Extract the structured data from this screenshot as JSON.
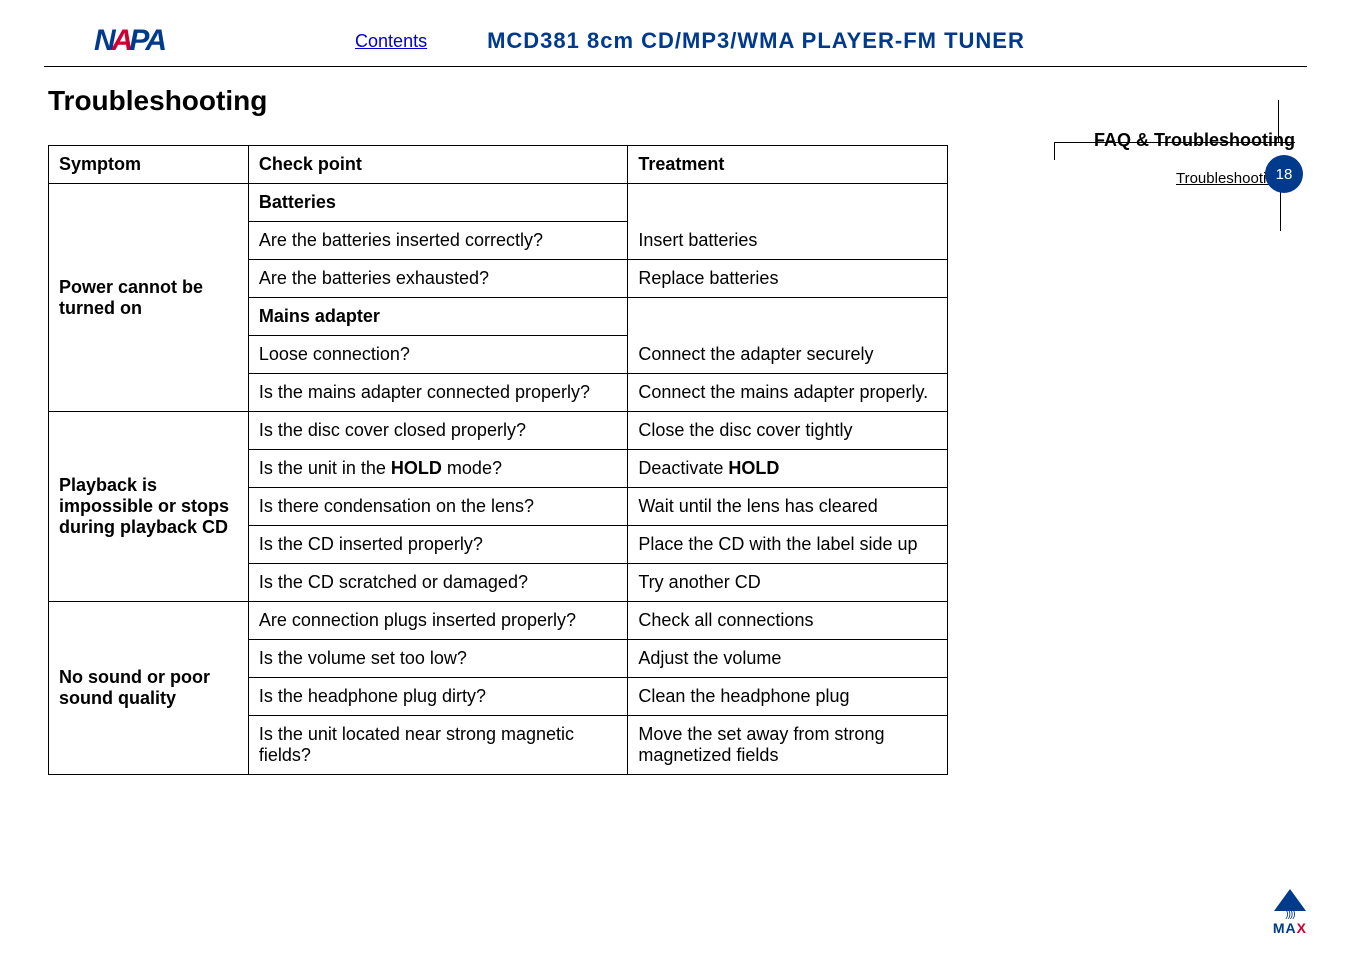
{
  "header": {
    "logo_parts": {
      "n": "N",
      "a": "A",
      "p": "P",
      "a2": "A"
    },
    "contents_link": "Contents",
    "product_title": "MCD381 8cm CD/MP3/WMA PLAYER-FM TUNER"
  },
  "page_title": "Troubleshooting",
  "sidebar": {
    "faq_heading": "FAQ & Troubleshooting",
    "toc_item": "Troubleshooting",
    "page_number": "18"
  },
  "table": {
    "headers": {
      "symptom": "Symptom",
      "check": "Check point",
      "treatment": "Treatment"
    },
    "groups": [
      {
        "symptom": "Power cannot be turned on",
        "rows": [
          {
            "check": "Batteries",
            "treatment": "",
            "is_subheader": true
          },
          {
            "check": "Are the batteries inserted correctly?",
            "treatment": "Insert batteries",
            "justify_check": true
          },
          {
            "check": "Are the batteries exhausted?",
            "treatment": "Replace batteries"
          },
          {
            "check": "Mains adapter",
            "treatment": "",
            "is_subheader": true
          },
          {
            "check": "Loose connection?",
            "treatment": "Connect the adapter securely"
          },
          {
            "check": "Is the mains adapter connected properly?",
            "treatment": "Connect the mains adapter properly.",
            "justify_check": true
          }
        ]
      },
      {
        "symptom": "Playback is impossible or stops during playback CD",
        "rows": [
          {
            "check": "Is the disc cover closed properly?",
            "treatment": "Close the disc cover tightly"
          },
          {
            "check": "Is the unit in the HOLD mode?",
            "treatment": "Deactivate HOLD",
            "bold_check_word": "HOLD",
            "bold_treat_word": "HOLD"
          },
          {
            "check": "Is there condensation on the lens?",
            "treatment": "Wait until the lens has cleared",
            "justify_treat": true
          },
          {
            "check": "Is the CD inserted properly?",
            "treatment": "Place the CD with the label side up"
          },
          {
            "check": "Is the CD scratched or damaged?",
            "treatment": "Try another CD"
          }
        ]
      },
      {
        "symptom": "No sound or poor sound quality",
        "rows": [
          {
            "check": "Are connection plugs inserted properly?",
            "treatment": "Check all connections",
            "justify_check": true
          },
          {
            "check": "Is the volume set too low?",
            "treatment": "Adjust the volume"
          },
          {
            "check": "Is the headphone plug dirty?",
            "treatment": "Clean the headphone plug"
          },
          {
            "check": "Is the unit located near strong magnetic fields?",
            "treatment": "Move the set away from strong magnetized fields",
            "justify_check": true,
            "justify_treat": true
          }
        ]
      }
    ]
  },
  "footer": {
    "brand": "MAX"
  },
  "colors": {
    "brand_blue": "#003a8c",
    "brand_red": "#cc0033",
    "link": "#0000cc",
    "text": "#000000",
    "bg": "#ffffff"
  },
  "fonts": {
    "body": "Verdana, Arial, sans-serif",
    "title_size_pt": 21,
    "body_size_pt": 13
  }
}
